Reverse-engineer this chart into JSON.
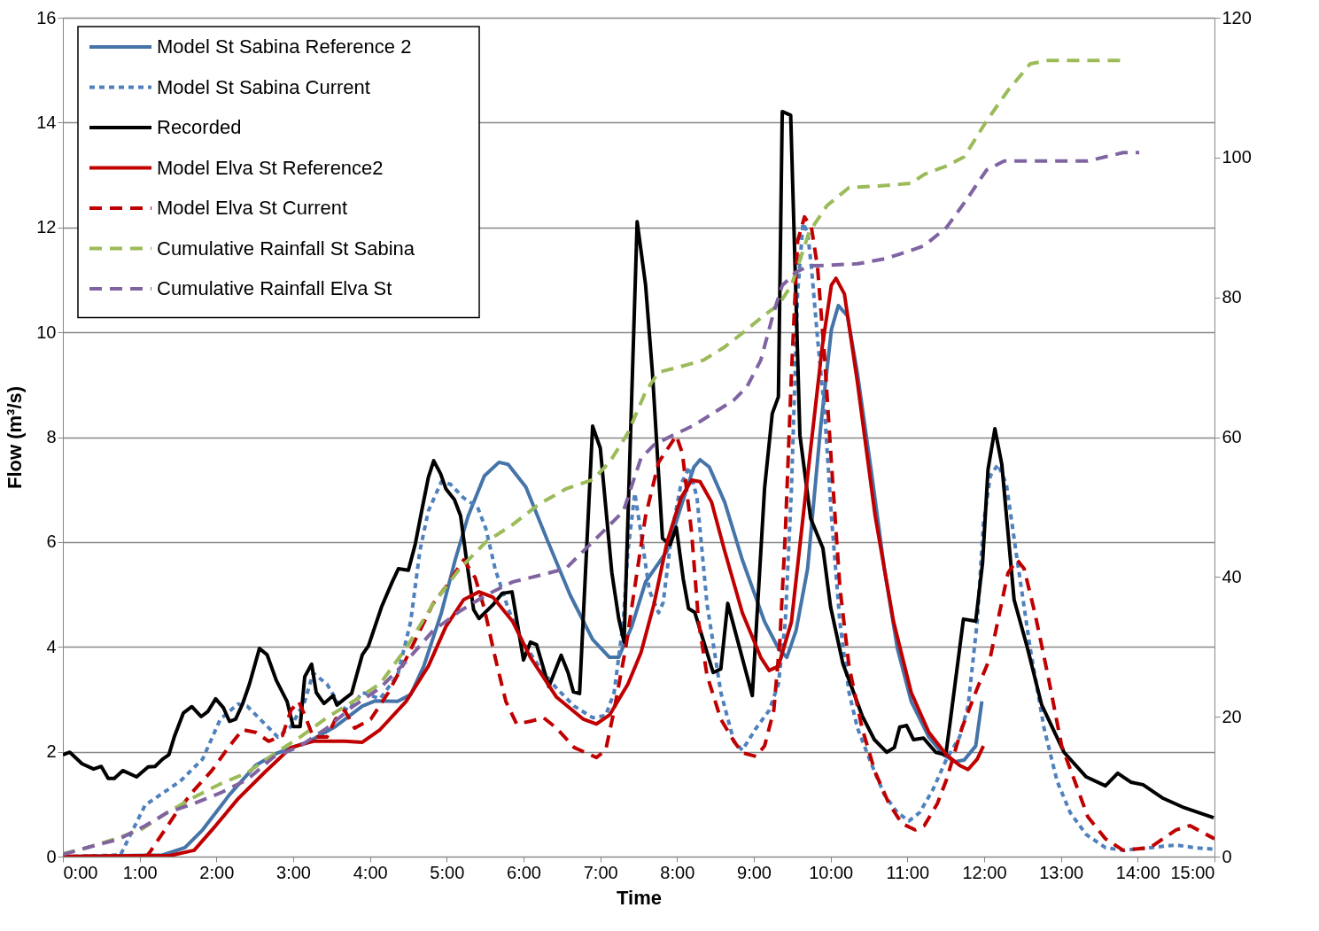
{
  "chart_data": {
    "type": "line",
    "xlabel": "Time",
    "ylabel": "Flow (m³/s)",
    "xlim": [
      0,
      15
    ],
    "xticks": [
      {
        "value": 0,
        "label": "0:00"
      },
      {
        "value": 1,
        "label": "1:00"
      },
      {
        "value": 2,
        "label": "2:00"
      },
      {
        "value": 3,
        "label": "3:00"
      },
      {
        "value": 4,
        "label": "4:00"
      },
      {
        "value": 5,
        "label": "5:00"
      },
      {
        "value": 6,
        "label": "6:00"
      },
      {
        "value": 7,
        "label": "7:00"
      },
      {
        "value": 8,
        "label": "8:00"
      },
      {
        "value": 9,
        "label": "9:00"
      },
      {
        "value": 10,
        "label": "10:00"
      },
      {
        "value": 11,
        "label": "11:00"
      },
      {
        "value": 12,
        "label": "12:00"
      },
      {
        "value": 13,
        "label": "13:00"
      },
      {
        "value": 14,
        "label": "14:00"
      },
      {
        "value": 15,
        "label": "15:00"
      }
    ],
    "ylim": [
      0,
      16
    ],
    "yticks": [
      0,
      2,
      4,
      6,
      8,
      10,
      12,
      14,
      16
    ],
    "y2lim": [
      0,
      120
    ],
    "y2ticks": [
      0,
      20,
      40,
      60,
      80,
      100,
      120
    ],
    "grid": "y",
    "legend": "top left",
    "marker": "none",
    "series": [
      {
        "name": "Model St Sabina Reference 2",
        "color": "#4574a9",
        "line_style": "solid",
        "x": [
          0,
          1.3,
          1.59,
          1.82,
          2.17,
          2.51,
          2.8,
          3.21,
          3.55,
          3.9,
          4.07,
          4.36,
          4.53,
          4.7,
          4.93,
          5.11,
          5.28,
          5.49,
          5.68,
          5.8,
          6.03,
          6.32,
          6.61,
          6.9,
          7.12,
          7.24,
          7.41,
          7.59,
          7.87,
          8.05,
          8.22,
          8.3,
          8.42,
          8.62,
          8.85,
          9.14,
          9.32,
          9.43,
          9.55,
          9.7,
          9.87,
          10.01,
          10.1,
          10.22,
          10.35,
          10.53,
          10.7,
          10.87,
          11.05,
          11.28,
          11.47,
          11.62,
          11.74,
          11.89,
          11.97
        ],
        "values": [
          0,
          0.03,
          0.17,
          0.51,
          1.18,
          1.74,
          1.98,
          2.2,
          2.48,
          2.87,
          2.97,
          2.96,
          3.09,
          3.63,
          4.65,
          5.66,
          6.5,
          7.26,
          7.52,
          7.48,
          7.05,
          6.0,
          4.98,
          4.14,
          3.8,
          3.8,
          4.39,
          5.24,
          5.83,
          6.67,
          7.43,
          7.57,
          7.43,
          6.76,
          5.66,
          4.48,
          3.97,
          3.8,
          4.31,
          5.49,
          8.19,
          10.05,
          10.51,
          10.31,
          9.21,
          7.35,
          5.49,
          3.97,
          2.96,
          2.28,
          1.94,
          1.81,
          1.84,
          2.11,
          2.96
        ]
      },
      {
        "name": "Model St Sabina Current",
        "color": "#4f81bd",
        "line_style": "dotted",
        "x": [
          0,
          0.75,
          1.07,
          1.53,
          1.82,
          2.05,
          2.28,
          2.4,
          2.63,
          2.8,
          2.97,
          3.15,
          3.26,
          3.44,
          3.61,
          3.72,
          3.9,
          4.13,
          4.36,
          4.53,
          4.65,
          4.76,
          4.93,
          5.05,
          5.22,
          5.4,
          5.51,
          5.63,
          5.8,
          5.97,
          6.2,
          6.43,
          6.66,
          6.9,
          7.07,
          7.18,
          7.3,
          7.36,
          7.45,
          7.53,
          7.64,
          7.76,
          7.82,
          7.93,
          8.05,
          8.16,
          8.26,
          8.39,
          8.57,
          8.74,
          8.85,
          9.03,
          9.2,
          9.32,
          9.41,
          9.49,
          9.57,
          9.64,
          9.7,
          9.75,
          9.83,
          9.92,
          10.01,
          10.12,
          10.24,
          10.35,
          10.53,
          10.7,
          10.87,
          11.02,
          11.16,
          11.33,
          11.51,
          11.68,
          11.79,
          11.91,
          11.99,
          12.08,
          12.18,
          12.29,
          12.43,
          12.6,
          12.78,
          12.95,
          13.12,
          13.33,
          13.58,
          13.81,
          14.16,
          14.5,
          14.74,
          14.99
        ],
        "values": [
          0,
          0.03,
          0.98,
          1.44,
          1.86,
          2.62,
          2.91,
          2.87,
          2.53,
          2.28,
          2.48,
          2.96,
          3.5,
          3.29,
          2.87,
          2.79,
          3.13,
          3.01,
          3.46,
          4.48,
          5.83,
          6.59,
          7.15,
          7.1,
          6.84,
          6.67,
          6.25,
          5.49,
          4.73,
          4.14,
          3.63,
          3.21,
          2.87,
          2.65,
          2.69,
          3.13,
          4.48,
          5.83,
          6.93,
          6.17,
          5.07,
          4.65,
          4.85,
          6.17,
          7.1,
          7.43,
          6.84,
          4.82,
          3.13,
          2.2,
          2.03,
          2.45,
          2.79,
          3.29,
          4.48,
          7.01,
          10.73,
          12.08,
          11.91,
          11.24,
          9.88,
          8.53,
          6.5,
          4.48,
          3.13,
          2.45,
          1.77,
          1.18,
          0.84,
          0.68,
          0.84,
          1.27,
          1.86,
          2.28,
          2.87,
          4.48,
          6.34,
          7.26,
          7.48,
          7.1,
          5.66,
          3.97,
          2.45,
          1.44,
          0.84,
          0.42,
          0.17,
          0.12,
          0.17,
          0.22,
          0.17,
          0.14
        ]
      },
      {
        "name": "Recorded",
        "color": "#000000",
        "line_style": "solid",
        "x": [
          0,
          0.09,
          0.25,
          0.4,
          0.5,
          0.59,
          0.67,
          0.78,
          0.96,
          1.11,
          1.2,
          1.3,
          1.38,
          1.45,
          1.57,
          1.68,
          1.8,
          1.89,
          1.99,
          2.09,
          2.17,
          2.25,
          2.34,
          2.43,
          2.56,
          2.66,
          2.78,
          2.92,
          3.0,
          3.09,
          3.15,
          3.24,
          3.3,
          3.4,
          3.52,
          3.57,
          3.67,
          3.76,
          3.9,
          3.98,
          4.15,
          4.29,
          4.37,
          4.5,
          4.59,
          4.68,
          4.76,
          4.83,
          4.92,
          4.99,
          5.1,
          5.18,
          5.26,
          5.35,
          5.42,
          5.6,
          5.72,
          5.85,
          6.0,
          6.09,
          6.17,
          6.33,
          6.49,
          6.58,
          6.65,
          6.73,
          6.9,
          7.0,
          7.15,
          7.24,
          7.31,
          7.48,
          7.59,
          7.68,
          7.81,
          7.91,
          7.99,
          8.08,
          8.15,
          8.23,
          8.47,
          8.57,
          8.66,
          8.98,
          9.14,
          9.24,
          9.32,
          9.37,
          9.48,
          9.6,
          9.74,
          9.9,
          10.0,
          10.16,
          10.28,
          10.41,
          10.57,
          10.73,
          10.83,
          10.9,
          10.99,
          11.08,
          11.21,
          11.37,
          11.5,
          11.56,
          11.73,
          11.89,
          11.98,
          12.05,
          12.14,
          12.23,
          12.39,
          12.56,
          12.75,
          13.04,
          13.33,
          13.58,
          13.74,
          13.91,
          14.07,
          14.32,
          14.61,
          14.99
        ],
        "values": [
          1.94,
          1.99,
          1.77,
          1.67,
          1.72,
          1.49,
          1.49,
          1.64,
          1.52,
          1.71,
          1.72,
          1.86,
          1.94,
          2.28,
          2.74,
          2.86,
          2.67,
          2.77,
          3.01,
          2.84,
          2.58,
          2.62,
          2.91,
          3.29,
          3.97,
          3.85,
          3.36,
          2.96,
          2.48,
          2.48,
          3.43,
          3.67,
          3.13,
          2.92,
          3.07,
          2.89,
          3.01,
          3.11,
          3.85,
          4.02,
          4.76,
          5.24,
          5.49,
          5.46,
          5.96,
          6.64,
          7.23,
          7.55,
          7.3,
          7.01,
          6.81,
          6.5,
          5.63,
          4.71,
          4.54,
          4.8,
          5.02,
          5.05,
          3.75,
          4.09,
          4.04,
          3.24,
          3.84,
          3.51,
          3.14,
          3.11,
          8.21,
          7.79,
          5.42,
          4.54,
          4.09,
          12.11,
          10.9,
          9.21,
          6.07,
          5.95,
          6.28,
          5.3,
          4.73,
          4.66,
          3.51,
          3.58,
          4.83,
          3.07,
          7.03,
          8.45,
          8.77,
          14.21,
          14.14,
          8.04,
          6.45,
          5.88,
          4.76,
          3.68,
          3.21,
          2.69,
          2.23,
          1.99,
          2.08,
          2.47,
          2.5,
          2.23,
          2.26,
          1.99,
          1.94,
          2.6,
          4.53,
          4.49,
          5.61,
          7.38,
          8.16,
          7.48,
          4.9,
          4.0,
          2.89,
          1.99,
          1.52,
          1.35,
          1.59,
          1.42,
          1.37,
          1.12,
          0.93,
          0.74
        ]
      },
      {
        "name": "Model Elva St Reference2",
        "color": "#c00000",
        "line_style": "solid",
        "x": [
          0,
          1.4,
          1.71,
          1.99,
          2.28,
          2.63,
          2.97,
          3.26,
          3.67,
          3.9,
          4.13,
          4.47,
          4.76,
          4.99,
          5.22,
          5.42,
          5.6,
          5.86,
          6.09,
          6.43,
          6.78,
          6.95,
          7.12,
          7.36,
          7.53,
          7.7,
          7.87,
          8.05,
          8.19,
          8.3,
          8.45,
          8.62,
          8.85,
          9.09,
          9.2,
          9.32,
          9.49,
          9.72,
          9.89,
          10.01,
          10.07,
          10.18,
          10.35,
          10.58,
          10.82,
          11.05,
          11.28,
          11.51,
          11.68,
          11.79,
          11.91,
          11.99
        ],
        "values": [
          0,
          0.02,
          0.12,
          0.59,
          1.1,
          1.61,
          2.08,
          2.2,
          2.2,
          2.18,
          2.42,
          2.96,
          3.63,
          4.39,
          4.9,
          5.05,
          4.95,
          4.48,
          3.8,
          3.04,
          2.62,
          2.53,
          2.7,
          3.29,
          3.89,
          4.82,
          6.0,
          6.84,
          7.18,
          7.15,
          6.76,
          5.83,
          4.65,
          3.8,
          3.55,
          3.63,
          4.48,
          7.52,
          9.71,
          10.9,
          11.03,
          10.73,
          9.04,
          6.5,
          4.48,
          3.13,
          2.37,
          1.94,
          1.74,
          1.66,
          1.86,
          2.11
        ]
      },
      {
        "name": "Model Elva St Current",
        "color": "#c00000",
        "line_style": "dashed",
        "x": [
          0,
          1.1,
          1.13,
          1.48,
          1.71,
          1.94,
          2.17,
          2.34,
          2.51,
          2.68,
          2.86,
          2.97,
          3.07,
          3.15,
          3.26,
          3.44,
          3.55,
          3.67,
          3.8,
          4.01,
          4.24,
          4.47,
          4.65,
          4.82,
          4.99,
          5.22,
          5.37,
          5.49,
          5.63,
          5.77,
          5.91,
          6.09,
          6.26,
          6.43,
          6.66,
          6.95,
          7.07,
          7.18,
          7.33,
          7.45,
          7.59,
          7.76,
          7.99,
          8.07,
          8.19,
          8.28,
          8.39,
          8.57,
          8.74,
          8.85,
          9.03,
          9.14,
          9.26,
          9.34,
          9.41,
          9.49,
          9.57,
          9.66,
          9.75,
          9.83,
          9.92,
          10.01,
          10.12,
          10.24,
          10.41,
          10.58,
          10.76,
          10.93,
          11.1,
          11.22,
          11.39,
          11.51,
          11.71,
          11.91,
          12.08,
          12.2,
          12.31,
          12.43,
          12.52,
          12.66,
          12.83,
          13.01,
          13.18,
          13.35,
          13.58,
          13.81,
          14.16,
          14.5,
          14.68,
          15.0
        ],
        "values": [
          0,
          0.02,
          0.08,
          0.84,
          1.27,
          1.64,
          2.11,
          2.42,
          2.37,
          2.2,
          2.31,
          2.79,
          2.96,
          2.7,
          2.28,
          2.28,
          2.62,
          2.79,
          2.45,
          2.62,
          3.13,
          3.77,
          4.31,
          4.82,
          5.15,
          5.66,
          5.32,
          4.73,
          3.8,
          2.96,
          2.53,
          2.58,
          2.65,
          2.45,
          2.08,
          1.89,
          2.03,
          2.79,
          3.97,
          5.15,
          6.5,
          7.52,
          8.03,
          7.69,
          6.17,
          4.48,
          3.46,
          2.62,
          2.2,
          1.98,
          1.91,
          2.11,
          2.79,
          4.14,
          6.17,
          9.21,
          11.74,
          12.2,
          12.0,
          11.24,
          9.55,
          7.52,
          5.15,
          3.63,
          2.45,
          1.61,
          1.01,
          0.63,
          0.51,
          0.59,
          1.01,
          1.47,
          2.45,
          3.21,
          3.8,
          4.65,
          5.41,
          5.66,
          5.49,
          4.65,
          3.46,
          2.11,
          1.44,
          0.76,
          0.34,
          0.12,
          0.17,
          0.51,
          0.59,
          0.34
        ]
      },
      {
        "name": "Cumulative Rainfall St Sabina",
        "color": "#9bbb59",
        "line_style": "dashed",
        "axis": "y2",
        "x": [
          0,
          0.32,
          0.67,
          1.01,
          1.36,
          1.71,
          2.05,
          2.4,
          2.74,
          3.09,
          3.44,
          3.78,
          4.13,
          4.47,
          4.82,
          5.17,
          5.51,
          5.86,
          6.2,
          6.55,
          6.9,
          7.12,
          7.36,
          7.59,
          7.76,
          8.05,
          8.34,
          8.62,
          8.91,
          9.14,
          9.32,
          9.49,
          9.72,
          9.95,
          10.24,
          10.58,
          11.05,
          11.22,
          11.51,
          11.74,
          12.03,
          12.31,
          12.6,
          12.83,
          13.35,
          13.81
        ],
        "values": [
          0.4,
          1.3,
          2.5,
          3.8,
          6.3,
          8.5,
          10.4,
          12.0,
          14.6,
          17.1,
          19.9,
          22.2,
          24.7,
          29.8,
          36.1,
          41.2,
          45.0,
          47.5,
          50.4,
          52.6,
          53.9,
          56.4,
          60.6,
          66.5,
          69.3,
          70.1,
          71.0,
          72.9,
          75.4,
          77.5,
          78.9,
          81.7,
          89.3,
          93.1,
          95.7,
          95.9,
          96.3,
          97.6,
          98.8,
          100.1,
          105.2,
          109.6,
          113.4,
          113.9,
          113.9,
          113.9
        ]
      },
      {
        "name": "Cumulative Rainfall Elva St",
        "color": "#8064a2",
        "line_style": "dashed",
        "axis": "y2",
        "x": [
          0,
          0.32,
          0.73,
          1.07,
          1.36,
          1.71,
          2.05,
          2.4,
          2.74,
          3.09,
          3.44,
          3.78,
          4.13,
          4.47,
          4.82,
          5.17,
          5.51,
          5.86,
          6.2,
          6.55,
          6.78,
          7.01,
          7.3,
          7.53,
          7.7,
          7.93,
          8.22,
          8.51,
          8.74,
          8.91,
          9.09,
          9.26,
          9.37,
          9.55,
          9.72,
          10.01,
          10.35,
          10.7,
          10.99,
          11.22,
          11.51,
          11.76,
          12.03,
          12.26,
          12.66,
          13.35,
          13.58,
          13.81,
          14.02
        ],
        "values": [
          0.3,
          1.3,
          2.5,
          4.4,
          6.3,
          7.6,
          9.1,
          11.0,
          14.2,
          15.8,
          18.4,
          21.5,
          24.1,
          27.9,
          32.3,
          35.1,
          37.4,
          39.3,
          40.2,
          41.2,
          43.7,
          46.2,
          49.4,
          57.0,
          58.9,
          60.2,
          61.7,
          63.7,
          65.3,
          67.2,
          71.0,
          77.9,
          81.7,
          83.6,
          84.5,
          84.6,
          84.8,
          85.5,
          86.5,
          87.4,
          90.0,
          93.8,
          98.2,
          99.5,
          99.5,
          99.5,
          100.1,
          100.7,
          100.7
        ]
      }
    ]
  }
}
